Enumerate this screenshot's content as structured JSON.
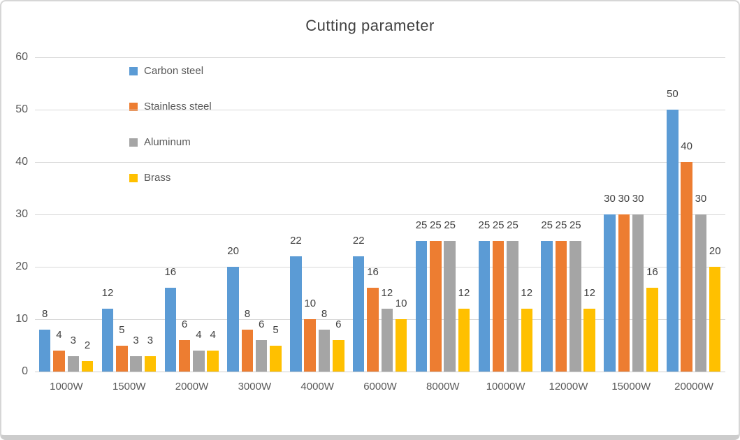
{
  "chart_data": {
    "type": "bar",
    "title": "Cutting parameter",
    "categories": [
      "1000W",
      "1500W",
      "2000W",
      "3000W",
      "4000W",
      "6000W",
      "8000W",
      "10000W",
      "12000W",
      "15000W",
      "20000W"
    ],
    "series": [
      {
        "name": "Carbon steel",
        "color": "#5B9BD5",
        "values": [
          8,
          12,
          16,
          20,
          22,
          22,
          25,
          25,
          25,
          30,
          50
        ]
      },
      {
        "name": "Stainless steel",
        "color": "#ED7D31",
        "values": [
          4,
          5,
          6,
          8,
          10,
          16,
          25,
          25,
          25,
          30,
          40
        ]
      },
      {
        "name": "Aluminum",
        "color": "#A5A5A5",
        "values": [
          3,
          3,
          4,
          6,
          8,
          12,
          25,
          25,
          25,
          30,
          30
        ]
      },
      {
        "name": "Brass",
        "color": "#FFC000",
        "values": [
          2,
          3,
          4,
          5,
          6,
          10,
          12,
          12,
          12,
          16,
          20
        ]
      }
    ],
    "y_ticks": [
      0,
      10,
      20,
      30,
      40,
      50,
      60
    ],
    "ylim": [
      0,
      60
    ],
    "xlabel": "",
    "ylabel": "",
    "grid": true,
    "data_labels": true,
    "legend_position": "inside-upper-left"
  },
  "styles": {
    "title_color": "#404040",
    "axis_label_color": "#595959",
    "data_label_color": "#404040",
    "gridline_color": "#d9d9d9",
    "axis_line_color": "#cfcfcf",
    "frame_border_color": "#d6d6d6",
    "background": "#ffffff"
  }
}
